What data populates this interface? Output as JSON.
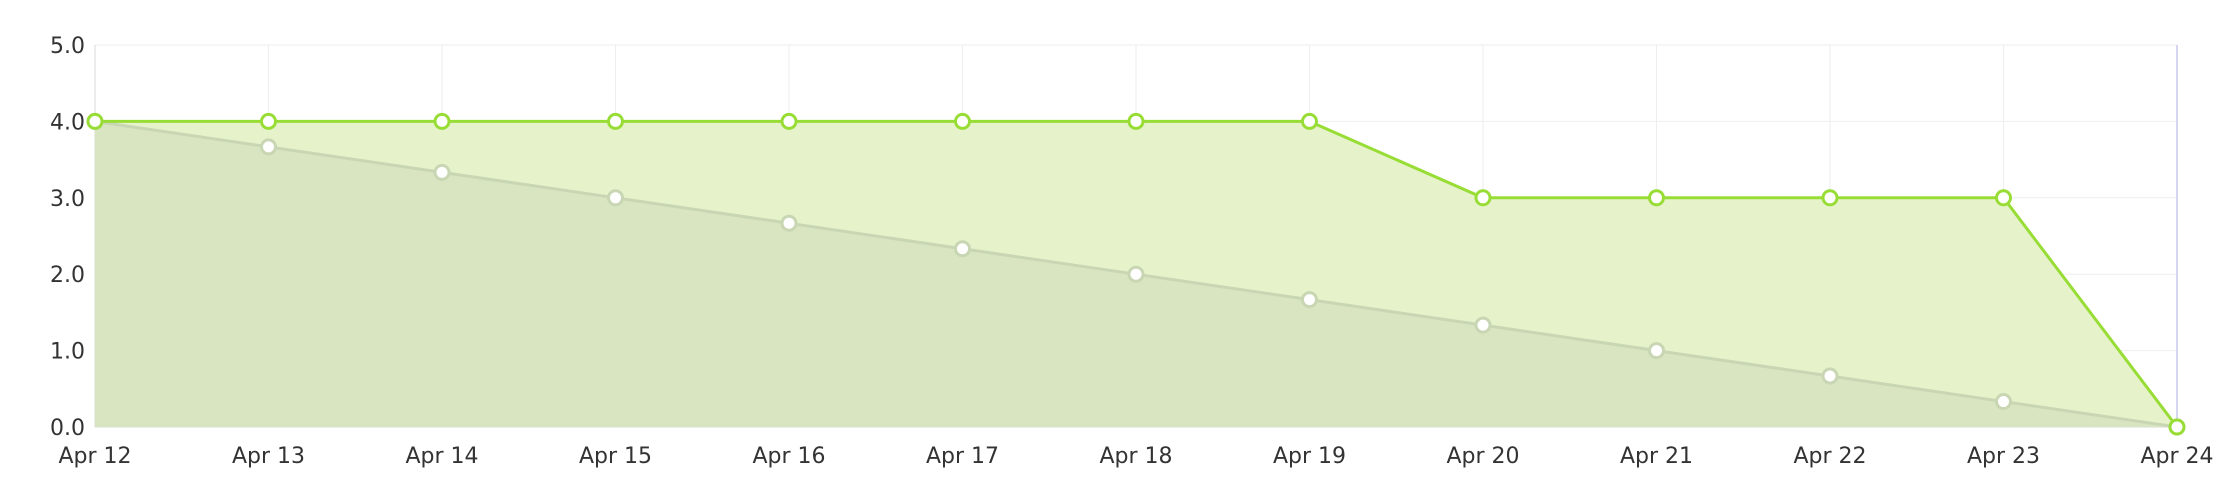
{
  "chart_data": {
    "type": "area",
    "categories": [
      "Apr 12",
      "Apr 13",
      "Apr 14",
      "Apr 15",
      "Apr 16",
      "Apr 17",
      "Apr 18",
      "Apr 19",
      "Apr 20",
      "Apr 21",
      "Apr 22",
      "Apr 23",
      "Apr 24"
    ],
    "y_ticks": [
      "0.0",
      "1.0",
      "2.0",
      "3.0",
      "4.0",
      "5.0"
    ],
    "ylim": [
      0,
      5
    ],
    "grid": true,
    "title": "",
    "xlabel": "",
    "ylabel": "",
    "series": [
      {
        "key": "ideal",
        "values": [
          4.0,
          3.667,
          3.333,
          3.0,
          2.667,
          2.333,
          2.0,
          1.667,
          1.333,
          1.0,
          0.667,
          0.333,
          0.0
        ],
        "line_color": "#c9d6b3",
        "fill_color": "#d9e5c1",
        "point_color": "#c9d6b3"
      },
      {
        "key": "actual",
        "values": [
          4,
          4,
          4,
          4,
          4,
          4,
          4,
          4,
          3,
          3,
          3,
          3,
          0
        ],
        "line_color": "#98dd35",
        "fill_color": "#e6f2c9",
        "point_color": "#98dd35"
      }
    ],
    "colors": {
      "grid": "#eeeeee",
      "axis": "#d8d8d8",
      "right_rule": "#d6d6f0",
      "tick_text": "#333333"
    }
  }
}
